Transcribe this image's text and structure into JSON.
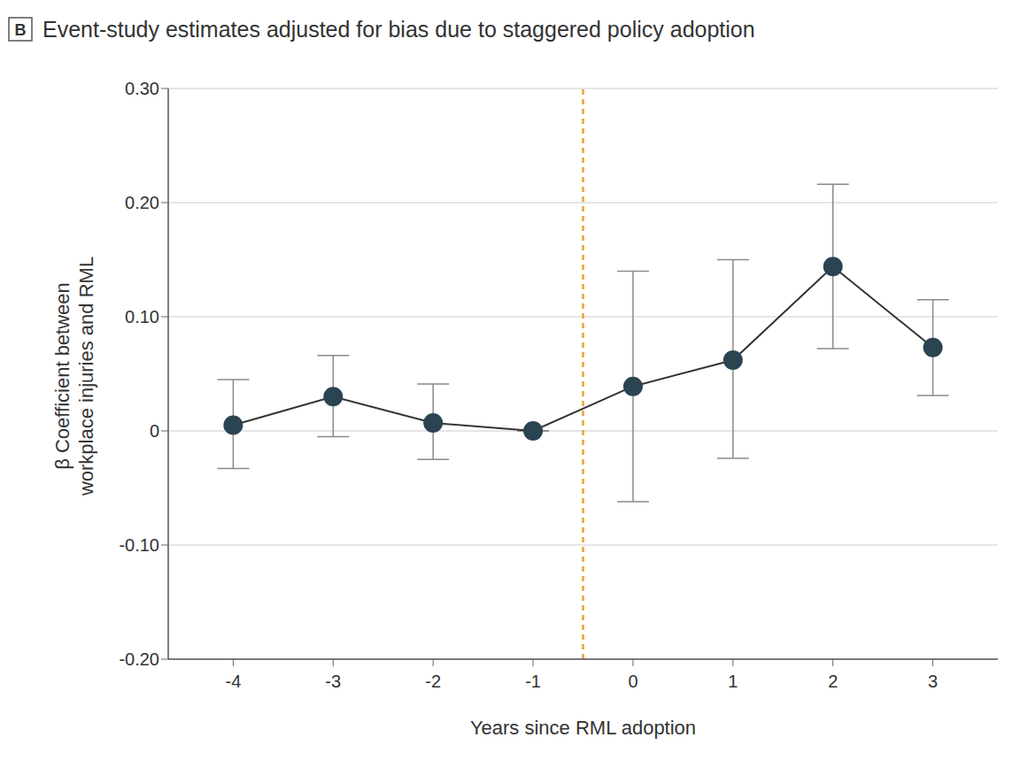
{
  "chart_data": {
    "type": "line",
    "panel": "B",
    "title": "Event-study estimates adjusted for bias due to staggered policy adoption",
    "xlabel": "Years since RML adoption",
    "ylabel": [
      "β Coefficient between",
      "workplace injuries and RML"
    ],
    "x": [
      -4,
      -3,
      -2,
      -1,
      0,
      1,
      2,
      3
    ],
    "values": [
      0.005,
      0.03,
      0.007,
      0,
      0.039,
      0.062,
      0.144,
      0.073
    ],
    "ci_lower": [
      -0.033,
      -0.005,
      -0.025,
      0,
      -0.062,
      -0.024,
      0.072,
      0.031
    ],
    "ci_upper": [
      0.045,
      0.066,
      0.041,
      0,
      0.14,
      0.15,
      0.216,
      0.115
    ],
    "color": "#2b4452",
    "marker": "circle",
    "xlim": [
      -4.65,
      3.65
    ],
    "xticks": [
      -4,
      -3,
      -2,
      -1,
      0,
      1,
      2,
      3
    ],
    "ylim": [
      -0.2,
      0.3
    ],
    "yticks": [
      {
        "value": -0.2,
        "label": "-0.20"
      },
      {
        "value": -0.1,
        "label": "-0.10"
      },
      0,
      {
        "value": 0.1,
        "label": "0.10"
      },
      {
        "value": 0.2,
        "label": "0.20"
      },
      {
        "value": 0.3,
        "label": "0.30"
      }
    ],
    "grid": true,
    "reference_line": {
      "x": -0.5,
      "color": "#f0a030",
      "line_style": "dashed"
    }
  }
}
